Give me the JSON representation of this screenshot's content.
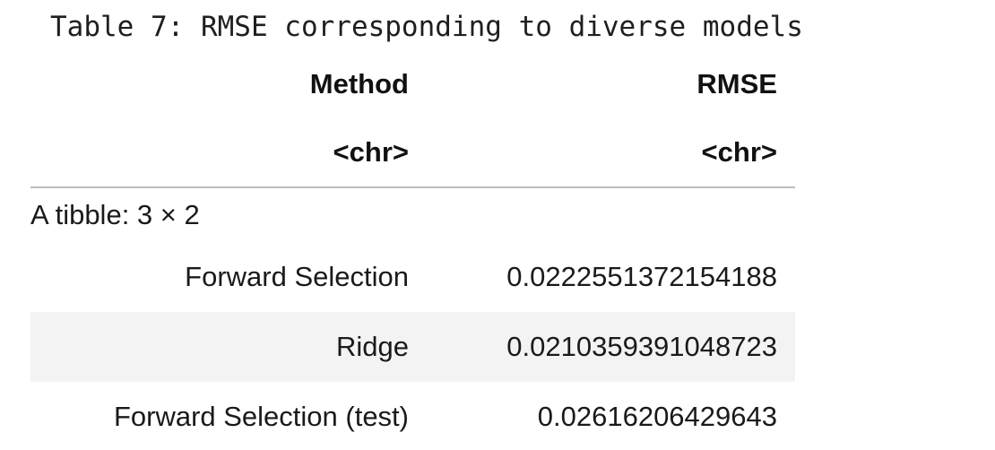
{
  "caption": "Table 7: RMSE corresponding to diverse models",
  "table": {
    "columns": [
      "Method",
      "RMSE"
    ],
    "column_types": [
      "<chr>",
      "<chr>"
    ],
    "tibble_label": "A tibble: 3 × 2",
    "rows": [
      {
        "method": "Forward Selection",
        "rmse": "0.0222551372154188"
      },
      {
        "method": "Ridge",
        "rmse": "0.0210359391048723"
      },
      {
        "method": "Forward Selection (test)",
        "rmse": "0.02616206429643"
      }
    ]
  }
}
